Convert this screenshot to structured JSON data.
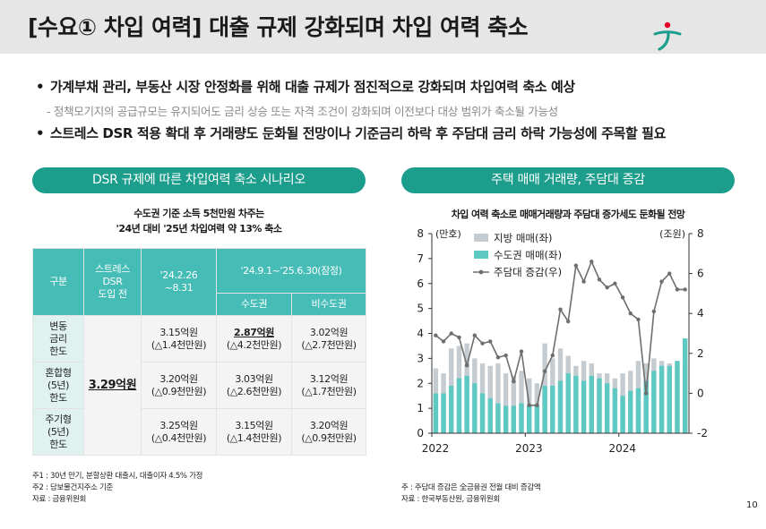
{
  "page": {
    "title": "[수요① 차입 여력] 대출 규제 강화되며 차입 여력 축소",
    "page_number": "10",
    "bullets": [
      {
        "marker": "•",
        "text": "가계부채 관리, 부동산 시장 안정화를 위해 대출 규제가 점진적으로 강화되며 차입여력 축소 예상"
      },
      {
        "marker": "-",
        "text": "정책모기지의 공급규모는 유지되어도 금리 상승 또는 자격 조건이 강화되며 이전보다 대상 범위가 축소될 가능성"
      },
      {
        "marker": "•",
        "text": "스트레스 DSR 적용 확대 후 거래량도 둔화될 전망이나 기준금리 하락 후 주담대 금리 하락 가능성에 주목할 필요"
      }
    ],
    "colors": {
      "accent": "#1d9e8d",
      "table_header": "#45bcb5",
      "row_header": "#dff2f0",
      "bar_gray": "#c5ccd1",
      "bar_teal": "#5ec8c2",
      "line": "#6e6e6e"
    }
  },
  "left": {
    "pill": "DSR 규제에 따른 차입여력 축소 시나리오",
    "subtitle_line1": "수도권 기준 소득 5천만원 차주는",
    "subtitle_line2": "'24년 대비 '25년 차입여력 약 13% 축소",
    "table": {
      "h_col": "구분",
      "h_pre": "스트레스\nDSR\n도입 전",
      "h_p1": "'24.2.26\n~8.31",
      "h_p2": "'24.9.1~'25.6.30(잠정)",
      "h_metro": "수도권",
      "h_nonmetro": "비수도권",
      "pre_value": "3.29억원",
      "rows": [
        {
          "label": "변동\n금리\n한도",
          "p1": "3.15억원\n(△1.4천만원)",
          "metro": "2.87억원\n(△4.2천만원)",
          "nonmetro": "3.02억원\n(△2.7천만원)"
        },
        {
          "label": "혼합형\n(5년)\n한도",
          "p1": "3.20억원\n(△0.9천만원)",
          "metro": "3.03억원\n(△2.6천만원)",
          "nonmetro": "3.12억원\n(△1.7천만원)"
        },
        {
          "label": "주기형\n(5년)\n한도",
          "p1": "3.25억원\n(△0.4천만원)",
          "metro": "3.15억원\n(△1.4천만원)",
          "nonmetro": "3.20억원\n(△0.9천만원)"
        }
      ]
    },
    "notes": [
      "주1 : 30년 만기, 분할상환 대출시, 대출이자 4.5% 가정",
      "주2 : 담보물건지주소 기준",
      "자료 : 금융위원회"
    ]
  },
  "right": {
    "pill": "주택 매매 거래량, 주담대 증감",
    "chart_title": "차입 여력 축소로 매매거래량과 주담대 증가세도 둔화될 전망",
    "notes": [
      "주 : 주담대 증감은 全금융권 전월 대비 증감액",
      "자료 : 한국부동산원, 금융위원회"
    ]
  },
  "chart_data": {
    "type": "bar",
    "title": "차입 여력 축소로 매매거래량과 주담대 증가세도 둔화될 전망",
    "y_left_label": "(만호)",
    "y_right_label": "(조원)",
    "ylim_left": [
      0,
      8
    ],
    "ylim_right": [
      -2,
      8
    ],
    "yticks_left": [
      "0",
      "1",
      "2",
      "3",
      "4",
      "5",
      "6",
      "7",
      "8"
    ],
    "yticks_right": [
      "-2",
      "0",
      "2",
      "4",
      "6",
      "8"
    ],
    "xticks": [
      "2022",
      "2023",
      "2024"
    ],
    "legend_position": "top",
    "x": [
      "2022-01",
      "2022-02",
      "2022-03",
      "2022-04",
      "2022-05",
      "2022-06",
      "2022-07",
      "2022-08",
      "2022-09",
      "2022-10",
      "2022-11",
      "2022-12",
      "2023-01",
      "2023-02",
      "2023-03",
      "2023-04",
      "2023-05",
      "2023-06",
      "2023-07",
      "2023-08",
      "2023-09",
      "2023-10",
      "2023-11",
      "2023-12",
      "2024-01",
      "2024-02",
      "2024-03",
      "2024-04",
      "2024-05",
      "2024-06",
      "2024-07",
      "2024-08",
      "2024-09"
    ],
    "series": [
      {
        "name": "지방 매매(좌)",
        "kind": "bar",
        "values": [
          2.6,
          2.4,
          3.4,
          3.5,
          3.6,
          3.0,
          2.8,
          2.7,
          2.8,
          2.4,
          2.3,
          2.5,
          2.2,
          2.0,
          3.6,
          3.0,
          3.4,
          3.1,
          2.7,
          2.9,
          2.8,
          2.4,
          2.4,
          2.2,
          2.4,
          2.5,
          2.9,
          2.8,
          3.0,
          2.9,
          2.8,
          2.7,
          3.0
        ]
      },
      {
        "name": "수도권 매매(좌)",
        "kind": "bar",
        "values": [
          1.6,
          1.6,
          1.9,
          2.2,
          2.3,
          2.0,
          1.6,
          1.4,
          1.2,
          1.1,
          1.1,
          1.2,
          1.1,
          1.1,
          1.9,
          1.9,
          2.1,
          2.4,
          2.3,
          2.1,
          2.3,
          2.2,
          2.0,
          1.8,
          1.5,
          1.7,
          1.8,
          2.1,
          2.5,
          2.7,
          2.7,
          2.9,
          3.8
        ]
      },
      {
        "name": "주담대 증감(우)",
        "kind": "line",
        "values": [
          2.9,
          2.6,
          3.0,
          2.8,
          1.4,
          2.9,
          2.5,
          2.6,
          1.8,
          1.9,
          0.6,
          2.1,
          -0.6,
          -0.6,
          1.1,
          1.9,
          4.2,
          3.6,
          6.4,
          5.6,
          6.6,
          5.7,
          5.3,
          5.5,
          4.8,
          4.0,
          3.7,
          0.0,
          4.1,
          5.6,
          6.0,
          5.2,
          5.2
        ]
      }
    ]
  }
}
